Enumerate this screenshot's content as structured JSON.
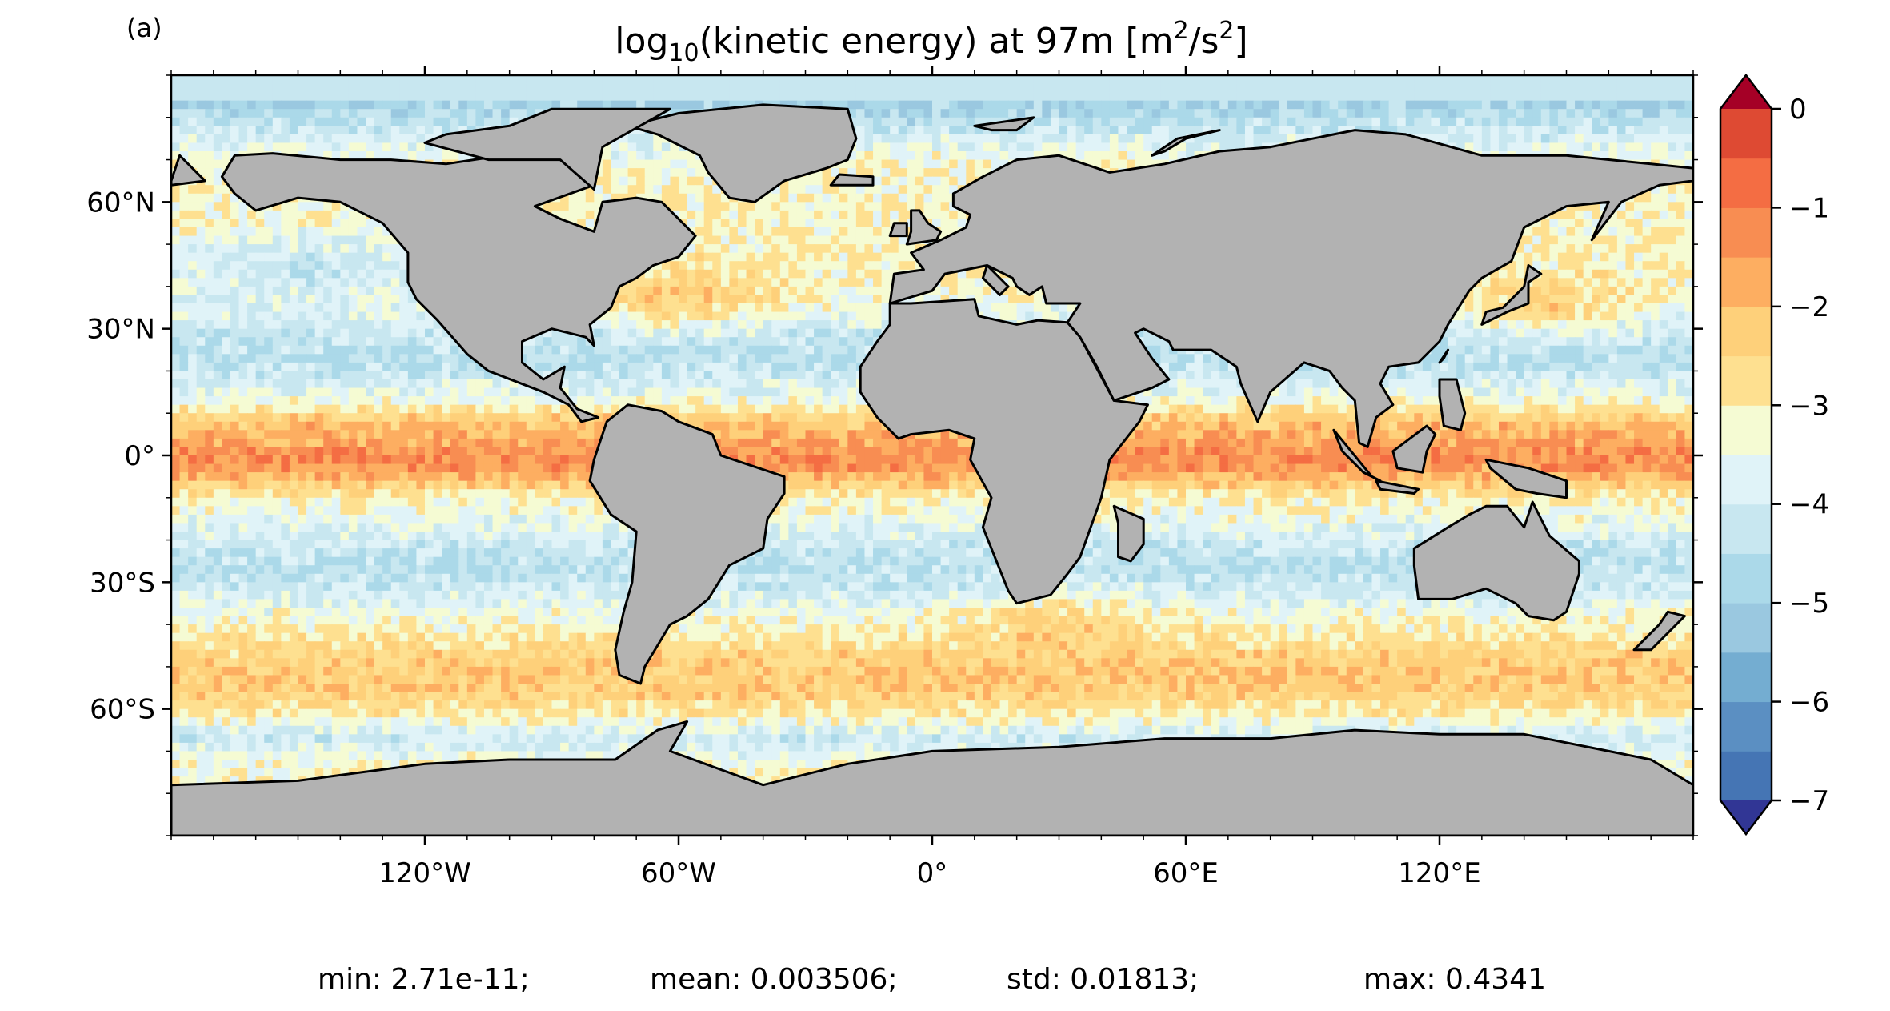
{
  "panel_label": "(a)",
  "title": {
    "prefix": "log",
    "subscript": "10",
    "middle": "(kinetic energy) at 97m [m",
    "superscript": "2",
    "mid2": "/s",
    "superscript2": "2",
    "suffix": "]"
  },
  "map": {
    "projection": "PlateCarree",
    "lon_range": [
      -180,
      180
    ],
    "lat_range": [
      -90,
      90
    ],
    "land_color": "#b2b2b2",
    "coastline_color": "#000000",
    "lat_ticks": [
      {
        "value": 60,
        "label": "60°N"
      },
      {
        "value": 30,
        "label": "30°N"
      },
      {
        "value": 0,
        "label": "0°"
      },
      {
        "value": -30,
        "label": "30°S"
      },
      {
        "value": -60,
        "label": "60°S"
      }
    ],
    "lon_ticks": [
      {
        "value": -120,
        "label": "120°W"
      },
      {
        "value": -60,
        "label": "60°W"
      },
      {
        "value": 0,
        "label": "0°"
      },
      {
        "value": 60,
        "label": "60°E"
      },
      {
        "value": 120,
        "label": "120°E"
      }
    ]
  },
  "colorbar": {
    "cmap": "RdYlBu_r",
    "vmin": -7,
    "vmax": 0,
    "step": 0.5,
    "extend": "both",
    "ticks": [
      {
        "value": 0,
        "label": "0"
      },
      {
        "value": -1,
        "label": "−1"
      },
      {
        "value": -2,
        "label": "−2"
      },
      {
        "value": -3,
        "label": "−3"
      },
      {
        "value": -4,
        "label": "−4"
      },
      {
        "value": -5,
        "label": "−5"
      },
      {
        "value": -6,
        "label": "−6"
      },
      {
        "value": -7,
        "label": "−7"
      }
    ],
    "colors": [
      "#313695",
      "#4575b4",
      "#5b8fc2",
      "#74add1",
      "#9ac8e0",
      "#abd9e9",
      "#c8e7f0",
      "#e0f3f8",
      "#f5fbd3",
      "#fee090",
      "#fed07a",
      "#fdae61",
      "#f88d52",
      "#f46d43",
      "#de4a33",
      "#c52a27",
      "#a50026"
    ]
  },
  "stats": {
    "min": "min: 2.71e-11;",
    "mean": "mean: 0.003506;",
    "std": "std: 0.01813;",
    "max": "max: 0.4341"
  }
}
